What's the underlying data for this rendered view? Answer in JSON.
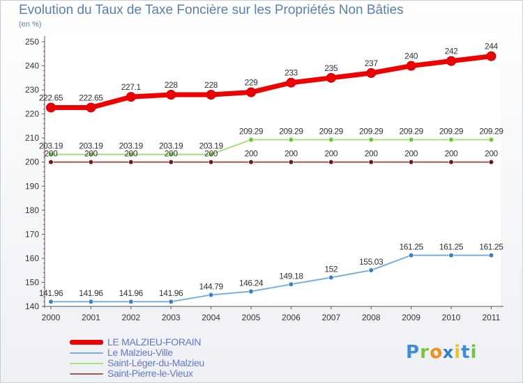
{
  "chart_data": {
    "type": "line",
    "title": "Evolution du Taux de Taxe Foncière sur les Propriétés Non Bâties",
    "ylabel": "(en %)",
    "xlabel": "",
    "ylim": [
      140,
      250
    ],
    "yticks": [
      140,
      150,
      160,
      170,
      180,
      190,
      200,
      210,
      220,
      230,
      240,
      250
    ],
    "categories": [
      "2000",
      "2001",
      "2002",
      "2003",
      "2004",
      "2005",
      "2006",
      "2007",
      "2008",
      "2009",
      "2010",
      "2011"
    ],
    "series": [
      {
        "name": "LE MALZIEU-FORAIN",
        "values": [
          222.65,
          222.65,
          227.1,
          228,
          228,
          229,
          233,
          235,
          237,
          240,
          242,
          244
        ],
        "labels": [
          "222.65",
          "222.65",
          "227.1",
          "228",
          "228",
          "229",
          "233",
          "235",
          "237",
          "240",
          "242",
          "244"
        ],
        "color": "#ee0000",
        "point_color": "#ee0000",
        "width": 7,
        "marker": 6.5
      },
      {
        "name": "Le Malzieu-Ville",
        "values": [
          141.96,
          141.96,
          141.96,
          141.96,
          144.79,
          146.24,
          149.18,
          152,
          155.03,
          161.25,
          161.25,
          161.25
        ],
        "labels": [
          "141.96",
          "141.96",
          "141.96",
          "141.96",
          "144.79",
          "146.24",
          "149.18",
          "152",
          "155.03",
          "161.25",
          "161.25",
          "161.25"
        ],
        "color": "#7eaed6",
        "point_color": "#3a7fc0",
        "width": 2,
        "marker": 3.3
      },
      {
        "name": "Saint-Léger-du-Malzieu",
        "values": [
          203.19,
          203.19,
          203.19,
          203.19,
          203.19,
          209.29,
          209.29,
          209.29,
          209.29,
          209.29,
          209.29,
          209.29
        ],
        "labels": [
          "203.19",
          "203.19",
          "203.19",
          "203.19",
          "203.19",
          "209.29",
          "209.29",
          "209.29",
          "209.29",
          "209.29",
          "209.29",
          "209.29"
        ],
        "color": "#a6e07e",
        "point_color": "#6fc33a",
        "width": 2,
        "marker": 3.3
      },
      {
        "name": "Saint-Pierre-le-Vieux",
        "values": [
          200,
          200,
          200,
          200,
          200,
          200,
          200,
          200,
          200,
          200,
          200,
          200
        ],
        "labels": [
          "200",
          "200",
          "200",
          "200",
          "200",
          "200",
          "200",
          "200",
          "200",
          "200",
          "200",
          "200"
        ],
        "color": "#9b5a5a",
        "point_color": "#6b1a1a",
        "width": 2,
        "marker": 3.3
      }
    ]
  },
  "legend_colors": {
    "text": "#6677cc"
  },
  "logo": {
    "letters": [
      "P",
      "r",
      "o",
      "x",
      "i",
      "t",
      "i"
    ],
    "colors": [
      "#3a8fd6",
      "#7cc242",
      "#f28c1a",
      "#2f7fcf",
      "#f2c21a",
      "#3a8fd6",
      "#7cc242"
    ]
  }
}
